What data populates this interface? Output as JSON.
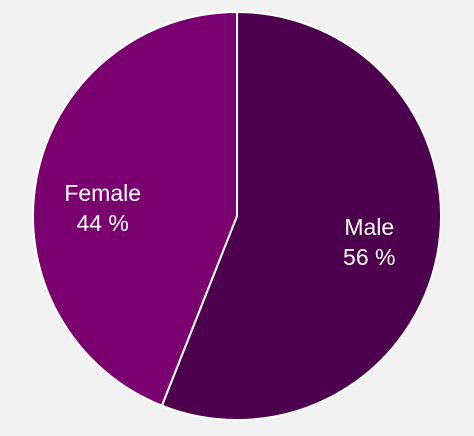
{
  "chart_data": {
    "type": "pie",
    "title": "",
    "slices": [
      {
        "label": "Male",
        "value": 56,
        "value_text": "56 %",
        "color": "#4d004d"
      },
      {
        "label": "Female",
        "value": 44,
        "value_text": "44 %",
        "color": "#7b006f"
      }
    ],
    "start_angle": "12 o'clock",
    "direction": "clockwise",
    "separator_color": "#ffffff",
    "background_color": "#f2f2f2"
  }
}
